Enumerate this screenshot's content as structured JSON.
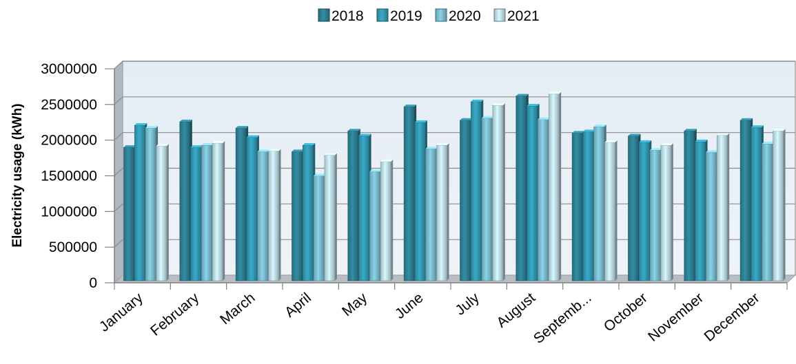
{
  "chart_data": {
    "type": "bar",
    "title": "",
    "xlabel": "",
    "ylabel": "Electricity usage (kWh)",
    "ylim": [
      0,
      3000000
    ],
    "yticks": [
      0,
      500000,
      1000000,
      1500000,
      2000000,
      2500000,
      3000000
    ],
    "grid": true,
    "legend_position": "top",
    "categories": [
      "January",
      "February",
      "March",
      "April",
      "May",
      "June",
      "July",
      "August",
      "Septemb...",
      "October",
      "November",
      "December"
    ],
    "series": [
      {
        "name": "2018",
        "color": "#2E7F93",
        "values": [
          1870000,
          2230000,
          2140000,
          1810000,
          2100000,
          2440000,
          2250000,
          2590000,
          2070000,
          2030000,
          2100000,
          2250000
        ]
      },
      {
        "name": "2019",
        "color": "#3399B3",
        "values": [
          2180000,
          1870000,
          2010000,
          1900000,
          2030000,
          2220000,
          2510000,
          2450000,
          2090000,
          1940000,
          1950000,
          2150000
        ]
      },
      {
        "name": "2020",
        "color": "#7ABCCF",
        "values": [
          2140000,
          1900000,
          1810000,
          1470000,
          1530000,
          1850000,
          2280000,
          2260000,
          2160000,
          1830000,
          1800000,
          1920000
        ]
      },
      {
        "name": "2021",
        "color": "#BFDDE8",
        "values": [
          1890000,
          1930000,
          1820000,
          1760000,
          1670000,
          1900000,
          2460000,
          2620000,
          1940000,
          1900000,
          2040000,
          2100000
        ]
      }
    ]
  }
}
